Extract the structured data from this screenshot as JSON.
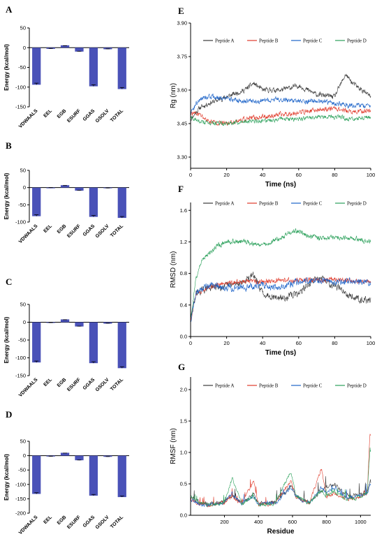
{
  "colors": {
    "bar": "#4a52b8",
    "peptideA": "#3a3a3a",
    "peptideB": "#e03a2a",
    "peptideC": "#1c63c8",
    "peptideD": "#2aa05a"
  },
  "chart_data": [
    {
      "panel": "A",
      "type": "bar",
      "categories": [
        "VDWAALS",
        "EEL",
        "EGB",
        "ESURF",
        "GGAS",
        "GSOLV",
        "TOTAL"
      ],
      "values": [
        -94,
        -3,
        6,
        -10,
        -98,
        -4,
        -105
      ],
      "errors": [
        4,
        1,
        1,
        1,
        4,
        1,
        4
      ],
      "ylabel": "Energy (kcal/mol)",
      "ylim": [
        -150,
        50
      ],
      "yticks": [
        -150,
        -100,
        -50,
        0,
        50
      ]
    },
    {
      "panel": "B",
      "type": "bar",
      "categories": [
        "VDWAALS",
        "EEL",
        "EGB",
        "ESURF",
        "GGAS",
        "GSOLV",
        "TOTAL"
      ],
      "values": [
        -83,
        -1,
        7,
        -9,
        -85,
        -2,
        -88
      ],
      "errors": [
        4,
        1,
        1,
        1,
        4,
        1,
        4
      ],
      "ylabel": "Energy (kcal/mol)",
      "ylim": [
        -100,
        50
      ],
      "yticks": [
        -100,
        -50,
        0,
        50
      ]
    },
    {
      "panel": "C",
      "type": "bar",
      "categories": [
        "VDWAALS",
        "EEL",
        "EGB",
        "ESURF",
        "GGAS",
        "GSOLV",
        "TOTAL"
      ],
      "values": [
        -113,
        -2,
        8,
        -12,
        -115,
        -4,
        -129
      ],
      "errors": [
        4,
        1,
        1,
        1,
        4,
        1,
        4
      ],
      "ylabel": "Energy (kcal/mol)",
      "ylim": [
        -150,
        50
      ],
      "yticks": [
        -150,
        -100,
        -50,
        0,
        50
      ]
    },
    {
      "panel": "D",
      "type": "bar",
      "categories": [
        "VDWAALS",
        "EEL",
        "EGB",
        "ESURF",
        "GGAS",
        "GSOLV",
        "TOTAL"
      ],
      "values": [
        -133,
        -3,
        10,
        -16,
        -139,
        -4,
        -144
      ],
      "errors": [
        4,
        1,
        1,
        1,
        4,
        1,
        4
      ],
      "ylabel": "Energy (kcal/mol)",
      "ylim": [
        -200,
        50
      ],
      "yticks": [
        -200,
        -150,
        -100,
        -50,
        0,
        50
      ]
    },
    {
      "panel": "E",
      "type": "line",
      "xlabel": "Time (ns)",
      "ylabel": "Rg (nm)",
      "xlim": [
        0,
        100
      ],
      "ylim": [
        3.25,
        3.9
      ],
      "xticks": [
        0,
        20,
        40,
        60,
        80,
        100
      ],
      "yticks": [
        3.3,
        3.45,
        3.6,
        3.75,
        3.9
      ],
      "legend": [
        "Peptide A",
        "Peptide B",
        "Peptide C",
        "Peptide D"
      ],
      "series": [
        {
          "name": "Peptide A",
          "x": [
            0,
            5,
            10,
            20,
            30,
            35,
            40,
            50,
            60,
            70,
            80,
            86,
            90,
            100
          ],
          "y": [
            3.47,
            3.52,
            3.54,
            3.57,
            3.6,
            3.63,
            3.6,
            3.6,
            3.62,
            3.58,
            3.57,
            3.67,
            3.63,
            3.57
          ]
        },
        {
          "name": "Peptide B",
          "x": [
            0,
            5,
            10,
            20,
            30,
            40,
            50,
            60,
            70,
            80,
            90,
            100
          ],
          "y": [
            3.5,
            3.49,
            3.46,
            3.45,
            3.47,
            3.48,
            3.49,
            3.5,
            3.51,
            3.52,
            3.5,
            3.51
          ]
        },
        {
          "name": "Peptide C",
          "x": [
            0,
            5,
            10,
            20,
            30,
            40,
            50,
            60,
            70,
            80,
            90,
            100
          ],
          "y": [
            3.5,
            3.56,
            3.57,
            3.56,
            3.55,
            3.55,
            3.56,
            3.55,
            3.55,
            3.54,
            3.53,
            3.53
          ]
        },
        {
          "name": "Peptide D",
          "x": [
            0,
            5,
            10,
            20,
            30,
            40,
            50,
            60,
            70,
            80,
            90,
            100
          ],
          "y": [
            3.48,
            3.46,
            3.45,
            3.45,
            3.46,
            3.46,
            3.47,
            3.47,
            3.48,
            3.48,
            3.47,
            3.48
          ]
        }
      ]
    },
    {
      "panel": "F",
      "type": "line",
      "xlabel": "Time (ns)",
      "ylabel": "RMSD (nm)",
      "xlim": [
        0,
        100
      ],
      "ylim": [
        0,
        1.7
      ],
      "xticks": [
        0,
        20,
        40,
        60,
        80,
        100
      ],
      "yticks": [
        0,
        0.4,
        0.8,
        1.2,
        1.6
      ],
      "legend": [
        "Peptide A",
        "Peptide B",
        "Peptide C",
        "Peptide D"
      ],
      "series": [
        {
          "name": "Peptide A",
          "x": [
            0,
            3,
            10,
            20,
            30,
            35,
            40,
            50,
            60,
            70,
            80,
            90,
            100
          ],
          "y": [
            0.2,
            0.55,
            0.62,
            0.64,
            0.7,
            0.78,
            0.55,
            0.48,
            0.55,
            0.75,
            0.65,
            0.5,
            0.45
          ]
        },
        {
          "name": "Peptide B",
          "x": [
            0,
            3,
            10,
            20,
            30,
            40,
            50,
            60,
            70,
            80,
            90,
            100
          ],
          "y": [
            0.2,
            0.55,
            0.62,
            0.68,
            0.7,
            0.7,
            0.72,
            0.71,
            0.72,
            0.72,
            0.7,
            0.7
          ]
        },
        {
          "name": "Peptide C",
          "x": [
            0,
            3,
            10,
            20,
            30,
            40,
            50,
            60,
            70,
            80,
            90,
            100
          ],
          "y": [
            0.2,
            0.55,
            0.65,
            0.62,
            0.62,
            0.65,
            0.62,
            0.7,
            0.72,
            0.68,
            0.7,
            0.68
          ]
        },
        {
          "name": "Peptide D",
          "x": [
            0,
            3,
            6,
            10,
            15,
            20,
            30,
            40,
            50,
            58,
            65,
            70,
            80,
            90,
            100
          ],
          "y": [
            0.2,
            0.75,
            0.95,
            1.05,
            1.15,
            1.2,
            1.2,
            1.15,
            1.25,
            1.35,
            1.28,
            1.25,
            1.25,
            1.25,
            1.2
          ]
        }
      ]
    },
    {
      "panel": "G",
      "type": "line",
      "xlabel": "Residue",
      "ylabel": "RMSF (nm)",
      "xlim": [
        1,
        1060
      ],
      "ylim": [
        0,
        2.2
      ],
      "xticks": [
        200,
        400,
        600,
        800,
        1000
      ],
      "yticks": [
        0,
        0.5,
        1,
        1.5,
        2
      ],
      "legend": [
        "Peptide A",
        "Peptide B",
        "Peptide C",
        "Peptide D"
      ],
      "series": [
        {
          "name": "Peptide A",
          "x": [
            1,
            50,
            100,
            150,
            200,
            245,
            300,
            370,
            400,
            450,
            500,
            590,
            620,
            700,
            770,
            800,
            850,
            900,
            950,
            1000,
            1040,
            1055
          ],
          "y": [
            0.3,
            0.2,
            0.18,
            0.2,
            0.22,
            0.3,
            0.2,
            0.35,
            0.18,
            0.2,
            0.22,
            0.45,
            0.3,
            0.2,
            0.4,
            0.45,
            0.5,
            0.35,
            0.3,
            0.35,
            0.4,
            0.55
          ]
        },
        {
          "name": "Peptide B",
          "x": [
            1,
            50,
            100,
            150,
            200,
            245,
            300,
            370,
            400,
            450,
            500,
            590,
            620,
            700,
            770,
            800,
            850,
            900,
            950,
            1000,
            1040,
            1055
          ],
          "y": [
            0.25,
            0.18,
            0.16,
            0.18,
            0.2,
            0.3,
            0.18,
            0.55,
            0.17,
            0.18,
            0.2,
            0.55,
            0.28,
            0.2,
            0.75,
            0.3,
            0.35,
            0.28,
            0.25,
            0.3,
            0.35,
            1.3
          ]
        },
        {
          "name": "Peptide C",
          "x": [
            1,
            50,
            100,
            150,
            200,
            245,
            300,
            370,
            400,
            450,
            500,
            590,
            620,
            700,
            770,
            800,
            850,
            900,
            950,
            1000,
            1040,
            1055
          ],
          "y": [
            0.25,
            0.18,
            0.16,
            0.18,
            0.2,
            0.35,
            0.18,
            0.3,
            0.17,
            0.18,
            0.2,
            0.45,
            0.3,
            0.2,
            0.45,
            0.35,
            0.45,
            0.3,
            0.28,
            0.32,
            0.35,
            0.5
          ]
        },
        {
          "name": "Peptide D",
          "x": [
            1,
            50,
            100,
            150,
            200,
            245,
            300,
            370,
            400,
            450,
            500,
            590,
            620,
            700,
            770,
            800,
            850,
            900,
            950,
            1000,
            1040,
            1055
          ],
          "y": [
            0.3,
            0.2,
            0.17,
            0.18,
            0.2,
            0.6,
            0.18,
            0.3,
            0.17,
            0.18,
            0.2,
            0.7,
            0.3,
            0.2,
            0.4,
            0.3,
            0.38,
            0.28,
            0.25,
            0.3,
            0.35,
            1.05
          ]
        }
      ]
    }
  ]
}
